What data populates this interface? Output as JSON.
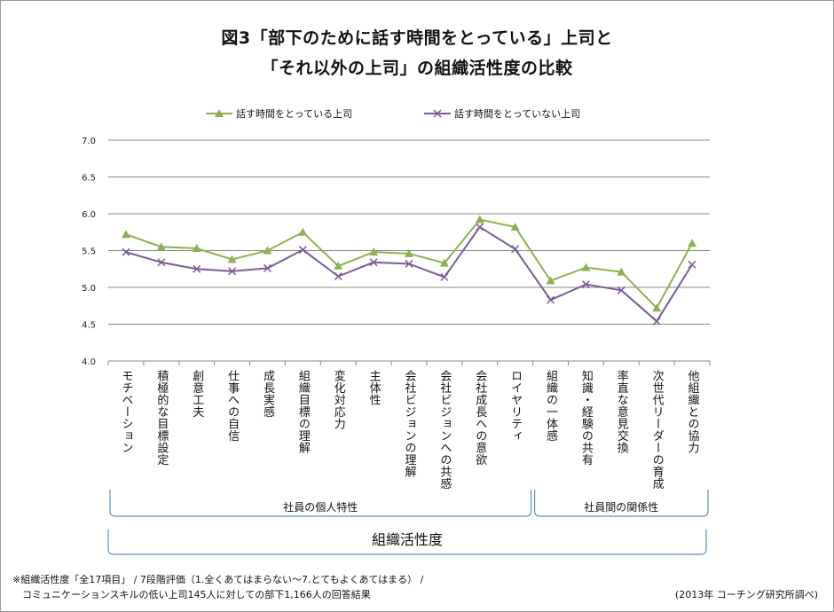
{
  "title_line1": "図3「部下のために話す時間をとっている」上司と",
  "title_line2": "「それ以外の上司」の組織活性度の比較",
  "colors": {
    "series_talk": "#8db150",
    "series_no_talk": "#7a5a9a",
    "grid": "#888888",
    "bracket": "#5b8fc9"
  },
  "icons": {
    "series_talk_marker": "triangle",
    "series_no_talk_marker": "x-cross"
  },
  "chart_data": {
    "type": "line",
    "title": "",
    "xlabel": "組織活性度",
    "ylabel": "",
    "ylim": [
      4.0,
      7.0
    ],
    "yticks": [
      "7.0",
      "6.5",
      "6.0",
      "5.5",
      "5.0",
      "4.5",
      "4.0"
    ],
    "grid": true,
    "legend_position": "top",
    "categories": [
      "モチベーション",
      "積極的な目標設定",
      "創意工夫",
      "仕事への自信",
      "成長実感",
      "組織目標の理解",
      "変化対応力",
      "主体性",
      "会社ビジョンの理解",
      "会社ビジョンへの共感",
      "会社成長への意欲",
      "ロイヤリティ",
      "組織の一体感",
      "知識・経験の共有",
      "率直な意見交換",
      "次世代リーダーの育成",
      "他組織との協力"
    ],
    "series": [
      {
        "name": "話す時間をとっている上司",
        "values": [
          5.72,
          5.55,
          5.53,
          5.38,
          5.5,
          5.75,
          5.29,
          5.48,
          5.46,
          5.33,
          5.92,
          5.82,
          5.09,
          5.27,
          5.21,
          4.72,
          5.6
        ]
      },
      {
        "name": "話す時間をとっていない上司",
        "values": [
          5.48,
          5.34,
          5.25,
          5.22,
          5.26,
          5.51,
          5.15,
          5.34,
          5.32,
          5.14,
          5.82,
          5.52,
          4.83,
          5.04,
          4.96,
          4.54,
          5.31
        ]
      }
    ],
    "groups": [
      {
        "label": "社員の個人特性",
        "from": 0,
        "to": 11
      },
      {
        "label": "社員間の関係性",
        "from": 12,
        "to": 16
      }
    ]
  },
  "notes": {
    "line1": "※組織活性度「全17項目」 / 7段階評価（1.全くあてはまらない〜7.とてもよくあてはまる） /",
    "line2": "　コミュニケーションスキルの低い上司145人に対しての部下1,166人の回答結果",
    "source": "(2013年 コーチング研究所調べ)"
  }
}
